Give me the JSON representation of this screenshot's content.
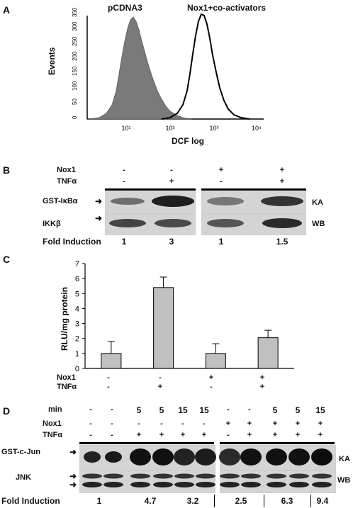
{
  "panelA": {
    "letter": "A",
    "legend_control": "pCDNA3",
    "legend_treated": "Nox1+co-activators",
    "ylabel": "Events",
    "xlabel": "DCF log",
    "y_ticks": [
      "0",
      "50",
      "100",
      "150",
      "200",
      "250",
      "300",
      "350"
    ],
    "x_ticks": [
      "10¹",
      "10²",
      "10³",
      "10⁴"
    ]
  },
  "panelB": {
    "letter": "B",
    "row_labels": [
      "Nox1",
      "TNFα"
    ],
    "signs": [
      [
        "-",
        "-",
        "+",
        "+"
      ],
      [
        "-",
        "+",
        "-",
        "+"
      ]
    ],
    "band_labels": [
      "GST-IκBα",
      "IKKβ"
    ],
    "assay_labels": [
      "KA",
      "WB"
    ],
    "fold_label": "Fold Induction",
    "fold_values": [
      "1",
      "3",
      "1",
      "1.5"
    ]
  },
  "panelC": {
    "letter": "C",
    "row_labels": [
      "Nox1",
      "TNFα"
    ],
    "signs": [
      [
        "-",
        "-",
        "+",
        "+"
      ],
      [
        "-",
        "+",
        "-",
        "+"
      ]
    ]
  },
  "chart_data": {
    "type": "bar",
    "categories": [
      "1",
      "2",
      "3",
      "4"
    ],
    "values": [
      1.0,
      5.4,
      1.0,
      2.05
    ],
    "errors": [
      0.8,
      0.7,
      0.65,
      0.5
    ],
    "ylabel": "RLU/mg protein",
    "ylim": [
      0,
      7
    ],
    "y_ticks": [
      "0",
      "1",
      "2",
      "3",
      "4",
      "5",
      "6",
      "7"
    ],
    "bar_color": "#c0c0c0"
  },
  "panelD": {
    "letter": "D",
    "row_labels": [
      "min",
      "Nox1",
      "TNFα"
    ],
    "signs": [
      [
        "-",
        "-",
        "5",
        "5",
        "15",
        "15",
        "-",
        "-",
        "5",
        "5",
        "15"
      ],
      [
        "-",
        "-",
        "-",
        "-",
        "-",
        "-",
        "+",
        "+",
        "+",
        "+",
        "+"
      ],
      [
        "-",
        "-",
        "+",
        "+",
        "+",
        "+",
        "-",
        "+",
        "+",
        "+",
        "+"
      ]
    ],
    "band_labels": [
      "GST-c-Jun",
      "JNK"
    ],
    "assay_labels": [
      "KA",
      "WB"
    ],
    "fold_label": "Fold Induction",
    "fold_values": [
      "1",
      "4.7",
      "3.2",
      "2.5",
      "6.3",
      "9.4"
    ]
  }
}
